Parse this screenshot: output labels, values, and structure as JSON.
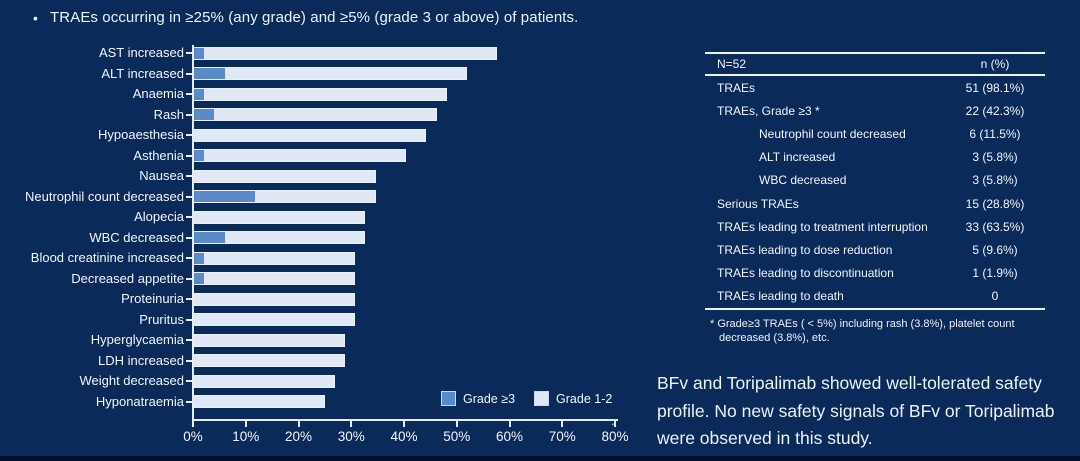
{
  "colors": {
    "background": "#0a2a5a",
    "text": "#f2f5fa",
    "grade3_blue": "#5a8ac8",
    "grade12_light": "#dfe8f4",
    "axis": "#e8edf5"
  },
  "bullet": {
    "glyph": "•",
    "text": "TRAEs occurring in ≥25% (any grade) and ≥5% (grade 3 or above) of patients."
  },
  "chart_data": {
    "type": "bar",
    "orientation": "horizontal",
    "stacked": true,
    "categories": [
      "AST increased",
      "ALT increased",
      "Anaemia",
      "Rash",
      "Hypoaesthesia",
      "Asthenia",
      "Nausea",
      "Neutrophil count decreased",
      "Alopecia",
      "WBC decreased",
      "Blood creatinine increased",
      "Decreased appetite",
      "Proteinuria",
      "Pruritus",
      "Hyperglycaemia",
      "LDH increased",
      "Weight decreased",
      "Hyponatraemia"
    ],
    "series": [
      {
        "name": "Grade ≥3",
        "color": "#5a8ac8",
        "values": [
          1.9,
          5.8,
          1.9,
          3.8,
          0,
          1.9,
          0,
          11.5,
          0,
          5.8,
          1.9,
          1.9,
          0,
          0,
          0,
          0,
          0,
          0
        ]
      },
      {
        "name": "Grade 1-2",
        "color": "#dfe8f4",
        "values": [
          55.8,
          46.1,
          46.2,
          42.4,
          44.2,
          38.5,
          34.6,
          23.1,
          32.7,
          26.9,
          28.9,
          28.9,
          30.8,
          30.8,
          28.8,
          28.8,
          26.9,
          25.0
        ]
      }
    ],
    "any_grade_totals": [
      57.7,
      51.9,
      48.1,
      46.2,
      44.2,
      40.4,
      34.6,
      34.6,
      32.7,
      32.7,
      30.8,
      30.8,
      30.8,
      30.8,
      28.8,
      28.8,
      26.9,
      25.0
    ],
    "xlim": [
      0,
      80
    ],
    "x_tick_labels": [
      "0%",
      "10%",
      "20%",
      "30%",
      "40%",
      "50%",
      "60%",
      "70%",
      "80%"
    ],
    "legend_position": "inside bottom-right",
    "grid": false,
    "stray_period": "."
  },
  "table": {
    "header": [
      "N=52",
      "n (%)"
    ],
    "rows": [
      {
        "label": "TRAEs",
        "value": "51 (98.1%)",
        "indent": false
      },
      {
        "label": "TRAEs, Grade ≥3 *",
        "value": "22 (42.3%)",
        "indent": false
      },
      {
        "label": "Neutrophil count decreased",
        "value": "6 (11.5%)",
        "indent": true
      },
      {
        "label": "ALT increased",
        "value": "3 (5.8%)",
        "indent": true
      },
      {
        "label": "WBC decreased",
        "value": "3 (5.8%)",
        "indent": true
      },
      {
        "label": "Serious TRAEs",
        "value": "15 (28.8%)",
        "indent": false
      },
      {
        "label": "TRAEs leading to treatment interruption",
        "value": "33 (63.5%)",
        "indent": false
      },
      {
        "label": "TRAEs leading to dose reduction",
        "value": "5 (9.6%)",
        "indent": false
      },
      {
        "label": "TRAEs leading to discontinuation",
        "value": "1 (1.9%)",
        "indent": false
      },
      {
        "label": "TRAEs leading to death",
        "value": "0",
        "indent": false
      }
    ],
    "footnote": "* Grade≥3 TRAEs ( < 5%) including rash (3.8%), platelet count decreased (3.8%), etc."
  },
  "summary": {
    "text": "BFv and Toripalimab showed well-tolerated safety profile. No new safety signals of BFv or Toripalimab were observed in this study."
  }
}
